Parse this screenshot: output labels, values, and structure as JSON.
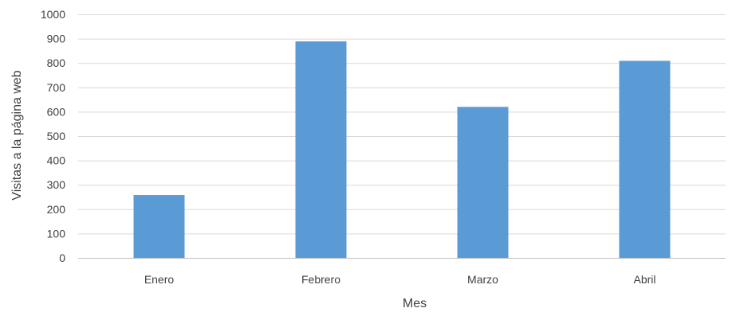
{
  "chart_data": {
    "type": "bar",
    "categories": [
      "Enero",
      "Febrero",
      "Marzo",
      "Abril"
    ],
    "values": [
      258,
      889,
      620,
      809
    ],
    "title": "",
    "xlabel": "Mes",
    "ylabel": "Visitas a la página web",
    "ylim": [
      0,
      1000
    ],
    "yticks": [
      "0",
      "100",
      "200",
      "300",
      "400",
      "500",
      "600",
      "700",
      "800",
      "900",
      "1000"
    ],
    "grid": true,
    "legend": "none",
    "bar_color": "#5b9bd5"
  }
}
